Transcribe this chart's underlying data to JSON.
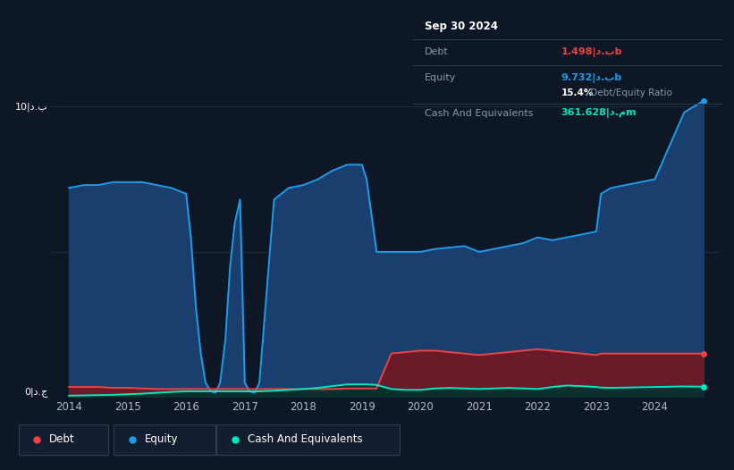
{
  "background_color": "#0e1726",
  "plot_bg_color": "#0e1726",
  "grid_color": "#1e2e42",
  "ylabel": "10|د.ب",
  "ylabel0": "0|د.ج",
  "years": [
    2014.0,
    2014.25,
    2014.5,
    2014.75,
    2015.0,
    2015.25,
    2015.5,
    2015.75,
    2016.0,
    2016.08,
    2016.17,
    2016.25,
    2016.33,
    2016.42,
    2016.5,
    2016.58,
    2016.67,
    2016.75,
    2016.83,
    2016.92,
    2017.0,
    2017.08,
    2017.17,
    2017.25,
    2017.5,
    2017.75,
    2018.0,
    2018.25,
    2018.5,
    2018.75,
    2019.0,
    2019.08,
    2019.25,
    2019.5,
    2019.75,
    2020.0,
    2020.25,
    2020.5,
    2020.75,
    2021.0,
    2021.25,
    2021.5,
    2021.75,
    2022.0,
    2022.25,
    2022.5,
    2022.75,
    2023.0,
    2023.08,
    2023.25,
    2023.5,
    2023.75,
    2024.0,
    2024.5,
    2024.83
  ],
  "equity": [
    7.2,
    7.3,
    7.3,
    7.4,
    7.4,
    7.4,
    7.3,
    7.2,
    7.0,
    5.5,
    3.0,
    1.5,
    0.5,
    0.2,
    0.15,
    0.5,
    2.0,
    4.5,
    6.0,
    6.8,
    0.5,
    0.2,
    0.15,
    0.5,
    6.8,
    7.2,
    7.3,
    7.5,
    7.8,
    8.0,
    8.0,
    7.5,
    5.0,
    5.0,
    5.0,
    5.0,
    5.1,
    5.15,
    5.2,
    5.0,
    5.1,
    5.2,
    5.3,
    5.5,
    5.4,
    5.5,
    5.6,
    5.7,
    7.0,
    7.2,
    7.3,
    7.4,
    7.5,
    9.8,
    10.2
  ],
  "debt": [
    0.35,
    0.35,
    0.35,
    0.32,
    0.32,
    0.3,
    0.28,
    0.28,
    0.28,
    0.28,
    0.28,
    0.28,
    0.28,
    0.28,
    0.28,
    0.28,
    0.28,
    0.28,
    0.28,
    0.28,
    0.28,
    0.28,
    0.28,
    0.28,
    0.28,
    0.28,
    0.28,
    0.28,
    0.28,
    0.3,
    0.3,
    0.3,
    0.3,
    1.5,
    1.55,
    1.6,
    1.6,
    1.55,
    1.5,
    1.45,
    1.5,
    1.55,
    1.6,
    1.65,
    1.6,
    1.55,
    1.5,
    1.45,
    1.5,
    1.5,
    1.5,
    1.5,
    1.5,
    1.5,
    1.5
  ],
  "cash": [
    0.05,
    0.06,
    0.07,
    0.08,
    0.1,
    0.12,
    0.15,
    0.18,
    0.2,
    0.2,
    0.2,
    0.2,
    0.2,
    0.2,
    0.2,
    0.2,
    0.2,
    0.2,
    0.2,
    0.2,
    0.2,
    0.2,
    0.2,
    0.2,
    0.22,
    0.25,
    0.28,
    0.32,
    0.38,
    0.44,
    0.44,
    0.44,
    0.42,
    0.28,
    0.25,
    0.25,
    0.3,
    0.32,
    0.3,
    0.28,
    0.3,
    0.32,
    0.3,
    0.28,
    0.35,
    0.4,
    0.38,
    0.35,
    0.33,
    0.32,
    0.33,
    0.34,
    0.35,
    0.37,
    0.36
  ],
  "equity_color": "#1e9be8",
  "debt_color": "#e84545",
  "cash_color": "#00e8c0",
  "equity_fill": "#1a3f6e",
  "debt_fill": "#6b1a2a",
  "cash_fill": "#0a3030",
  "ylim": [
    0,
    11
  ],
  "xlim": [
    2013.7,
    2025.1
  ],
  "xticks": [
    2014,
    2015,
    2016,
    2017,
    2018,
    2019,
    2020,
    2021,
    2022,
    2023,
    2024
  ],
  "tooltip_date": "Sep 30 2024",
  "tooltip_debt_label": "Debt",
  "tooltip_debt_val": "1.498|د.بb",
  "tooltip_equity_label": "Equity",
  "tooltip_equity_val": "9.732|د.بb",
  "tooltip_ratio": "15.4%",
  "tooltip_ratio_label": " Debt/Equity Ratio",
  "tooltip_cash_label": "Cash And Equivalents",
  "tooltip_cash_val": "361.628|د.مm",
  "legend_items": [
    "Debt",
    "Equity",
    "Cash And Equivalents"
  ],
  "legend_colors": [
    "#e84545",
    "#1e9be8",
    "#00e8c0"
  ],
  "legend_bg": "#131f30",
  "legend_border": "#2a3f55"
}
